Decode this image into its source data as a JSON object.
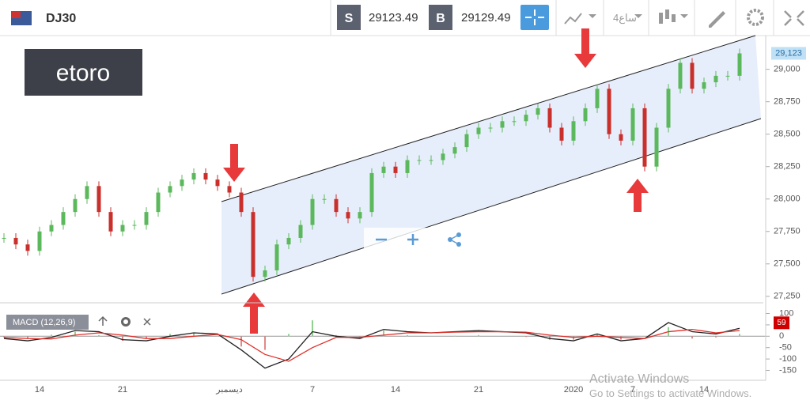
{
  "toolbar": {
    "symbol": "DJ30",
    "sell_label": "S",
    "sell_price": "29123.49",
    "buy_label": "B",
    "buy_price": "29129.49",
    "timeframe": "4ساع"
  },
  "logo": "etoro",
  "watermark": {
    "title": "Activate Windows",
    "subtitle": "Go to Settings to activate Windows."
  },
  "chart_data": [
    {
      "type": "candlestick",
      "categories": [
        null,
        null,
        null,
        "14",
        null,
        null,
        null,
        null,
        null,
        null,
        "21",
        null,
        null,
        null,
        null,
        null,
        null,
        null,
        null,
        "ديسمبر",
        null,
        null,
        null,
        null,
        null,
        null,
        "7",
        null,
        null,
        null,
        null,
        null,
        null,
        "14",
        null,
        null,
        null,
        null,
        null,
        null,
        "21",
        null,
        null,
        null,
        null,
        null,
        null,
        null,
        "2020",
        null,
        null,
        null,
        null,
        "7",
        null,
        null,
        null,
        null,
        null,
        "14",
        null,
        null,
        null
      ],
      "values": [
        27700,
        27650,
        27600,
        27750,
        27800,
        27900,
        28000,
        28100,
        27900,
        27750,
        27800,
        27800,
        27900,
        28050,
        28100,
        28150,
        28200,
        28150,
        28100,
        28050,
        27900,
        27400,
        27450,
        27650,
        27700,
        27800,
        28000,
        28000,
        27900,
        27850,
        27900,
        28200,
        28250,
        28200,
        28300,
        28300,
        28300,
        28350,
        28400,
        28500,
        28550,
        28550,
        28600,
        28600,
        28650,
        28700,
        28550,
        28450,
        28600,
        28700,
        28850,
        28500,
        28450,
        28700,
        28250,
        28550,
        28850,
        29050,
        28850,
        28900,
        28950,
        28950,
        29123
      ],
      "up_color": "#5cb85c",
      "down_color": "#c9302c",
      "ylim": [
        27200,
        29260
      ],
      "yticks": [
        {
          "value": 29000,
          "label": "29,000"
        },
        {
          "value": 28750,
          "label": "28,750"
        },
        {
          "value": 28500,
          "label": "28,500"
        },
        {
          "value": 28250,
          "label": "28,250"
        },
        {
          "value": 28000,
          "label": "28,000"
        },
        {
          "value": 27750,
          "label": "27,750"
        },
        {
          "value": 27500,
          "label": "27,500"
        },
        {
          "value": 27250,
          "label": "27,250"
        }
      ],
      "last_price": {
        "value": 29123,
        "label": "29,123"
      }
    },
    {
      "type": "macd",
      "title": "MACD (12,26,9)",
      "series": [
        {
          "color": "#222222",
          "values": [
            -10,
            -20,
            -5,
            25,
            20,
            -15,
            -20,
            0,
            15,
            10,
            -60,
            -140,
            -100,
            20,
            0,
            -10,
            30,
            20,
            15,
            20,
            25,
            20,
            15,
            -10,
            -20,
            10,
            -20,
            -10,
            60,
            20,
            10,
            35
          ]
        },
        {
          "color": "#e0302a",
          "values": [
            -5,
            -10,
            -12,
            5,
            15,
            5,
            -10,
            -10,
            0,
            8,
            -15,
            -80,
            -110,
            -50,
            -5,
            -5,
            5,
            15,
            15,
            18,
            20,
            20,
            18,
            5,
            -5,
            0,
            -5,
            -10,
            20,
            30,
            15,
            25
          ]
        }
      ],
      "histogram": {
        "up_color": "#8fd18f",
        "down_color": "#e08a88",
        "values": [
          -5,
          -10,
          7,
          20,
          5,
          -20,
          -10,
          10,
          15,
          2,
          -45,
          -60,
          10,
          70,
          5,
          -5,
          25,
          5,
          0,
          2,
          5,
          0,
          -3,
          -15,
          -15,
          10,
          -15,
          0,
          40,
          -10,
          -5,
          10
        ]
      },
      "last_value": 59,
      "ylim": [
        -190,
        140
      ],
      "yticks": [
        100,
        50,
        0,
        -50,
        -100,
        -150
      ]
    }
  ]
}
